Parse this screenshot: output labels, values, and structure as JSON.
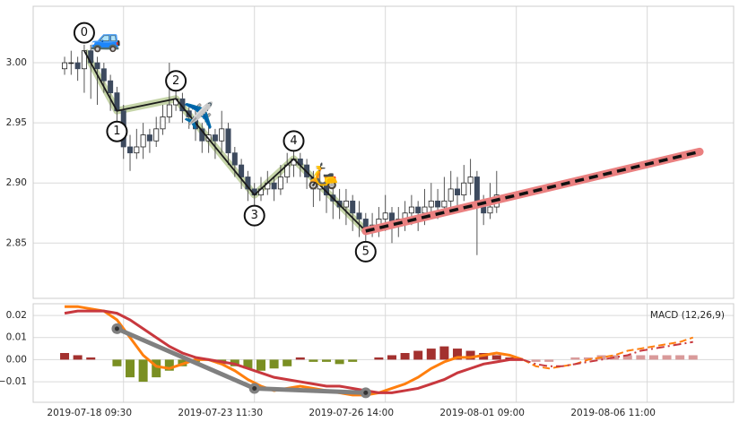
{
  "chart_data": [
    {
      "type": "candlestick",
      "x": [
        1,
        2,
        3,
        4,
        5,
        6,
        7,
        8,
        9,
        10,
        11,
        12,
        13,
        14,
        15,
        16,
        17,
        18,
        19,
        20,
        21,
        22,
        23,
        24,
        25,
        26,
        27,
        28,
        29,
        30,
        31,
        32,
        33,
        34,
        35,
        36,
        37,
        38,
        39,
        40,
        41,
        42,
        43,
        44,
        45,
        46,
        47,
        48,
        49,
        50,
        51,
        52,
        53,
        54,
        55,
        56,
        57,
        58,
        59,
        60,
        61,
        62,
        63,
        64,
        65,
        66,
        67
      ],
      "open": [
        2.995,
        3.0,
        3.0,
        2.995,
        3.01,
        3.0,
        2.995,
        2.985,
        2.975,
        2.96,
        2.93,
        2.925,
        2.93,
        2.94,
        2.935,
        2.945,
        2.955,
        2.965,
        2.97,
        2.96,
        2.955,
        2.945,
        2.935,
        2.94,
        2.935,
        2.945,
        2.925,
        2.915,
        2.905,
        2.895,
        2.89,
        2.895,
        2.9,
        2.895,
        2.905,
        2.915,
        2.92,
        2.915,
        2.905,
        2.895,
        2.9,
        2.89,
        2.885,
        2.88,
        2.885,
        2.875,
        2.87,
        2.86,
        2.865,
        2.87,
        2.875,
        2.865,
        2.87,
        2.875,
        2.88,
        2.875,
        2.88,
        2.885,
        2.88,
        2.885,
        2.895,
        2.89,
        2.9,
        2.905,
        2.88,
        2.875,
        2.88
      ],
      "high": [
        3.005,
        3.01,
        3.005,
        3.015,
        3.015,
        3.005,
        3.0,
        2.99,
        2.98,
        2.965,
        2.94,
        2.945,
        2.95,
        2.945,
        2.955,
        2.965,
        3.0,
        2.99,
        2.975,
        2.965,
        2.96,
        2.95,
        2.95,
        2.945,
        2.96,
        2.95,
        2.93,
        2.92,
        2.91,
        2.9,
        2.905,
        2.91,
        2.905,
        2.915,
        2.925,
        2.93,
        2.925,
        2.92,
        2.91,
        2.91,
        2.905,
        2.9,
        2.895,
        2.895,
        2.89,
        2.885,
        2.875,
        2.875,
        2.88,
        2.89,
        2.88,
        2.88,
        2.885,
        2.89,
        2.885,
        2.895,
        2.9,
        2.895,
        2.905,
        2.91,
        2.905,
        2.915,
        2.92,
        2.91,
        2.89,
        2.9,
        2.91
      ],
      "low": [
        2.99,
        2.99,
        2.985,
        2.975,
        2.97,
        2.965,
        2.975,
        2.96,
        2.95,
        2.92,
        2.91,
        2.92,
        2.92,
        2.925,
        2.93,
        2.94,
        2.95,
        2.96,
        2.95,
        2.945,
        2.935,
        2.925,
        2.925,
        2.92,
        2.925,
        2.915,
        2.905,
        2.895,
        2.885,
        2.88,
        2.885,
        2.89,
        2.885,
        2.89,
        2.9,
        2.905,
        2.905,
        2.895,
        2.88,
        2.885,
        2.875,
        2.87,
        2.87,
        2.865,
        2.86,
        2.855,
        2.85,
        2.855,
        2.855,
        2.86,
        2.85,
        2.855,
        2.86,
        2.865,
        2.86,
        2.865,
        2.87,
        2.87,
        2.875,
        2.88,
        2.88,
        2.885,
        2.89,
        2.84,
        2.865,
        2.87,
        2.875
      ],
      "close": [
        3.0,
        3.0,
        2.995,
        3.01,
        3.0,
        2.995,
        2.985,
        2.975,
        2.96,
        2.93,
        2.925,
        2.93,
        2.94,
        2.935,
        2.945,
        2.955,
        2.965,
        2.97,
        2.96,
        2.955,
        2.945,
        2.935,
        2.94,
        2.935,
        2.945,
        2.925,
        2.915,
        2.905,
        2.895,
        2.89,
        2.895,
        2.9,
        2.895,
        2.905,
        2.915,
        2.92,
        2.915,
        2.905,
        2.895,
        2.9,
        2.89,
        2.885,
        2.88,
        2.885,
        2.875,
        2.87,
        2.86,
        2.865,
        2.87,
        2.875,
        2.865,
        2.87,
        2.875,
        2.88,
        2.875,
        2.88,
        2.885,
        2.88,
        2.885,
        2.895,
        2.89,
        2.9,
        2.905,
        2.88,
        2.875,
        2.88,
        2.89
      ],
      "up_color": "#ffffff",
      "down_color": "#3d4a5e",
      "zigzag": {
        "x": [
          4,
          9,
          18,
          30,
          36,
          47
        ],
        "y": [
          3.01,
          2.96,
          2.97,
          2.89,
          2.92,
          2.86
        ],
        "labels": [
          "0",
          "1",
          "2",
          "3",
          "4",
          "5"
        ],
        "color": "#1a1a1a",
        "halo": "#c5d4a8"
      },
      "forecast": {
        "x": [
          47,
          98
        ],
        "y": [
          2.86,
          2.926
        ],
        "color": "#111111",
        "halo": "#ea8080"
      },
      "markers": [
        {
          "label": "🚙",
          "x": 7.3,
          "y": 3.019
        },
        {
          "label": "✈️",
          "x": 21.5,
          "y": 2.955
        },
        {
          "label": "🛵",
          "x": 40.5,
          "y": 2.905
        }
      ],
      "xlim": [
        -3.8,
        103.2
      ],
      "xticks": [
        {
          "value": 10,
          "label": "2019-07-18 09:30"
        },
        {
          "value": 30,
          "label": "2019-07-23 11:30"
        },
        {
          "value": 50,
          "label": "2019-07-26 14:00"
        },
        {
          "value": 70,
          "label": "2019-08-01 09:00"
        },
        {
          "value": 90,
          "label": "2019-08-06 11:00"
        }
      ],
      "ylim": [
        2.804,
        3.047
      ],
      "yticks": [
        {
          "value": 2.85,
          "label": "2.85"
        },
        {
          "value": 2.9,
          "label": "2.90"
        },
        {
          "value": 2.95,
          "label": "2.95"
        },
        {
          "value": 3.0,
          "label": "3.00"
        }
      ],
      "grid": true
    },
    {
      "type": "macd",
      "label": "MACD (12,26,9)",
      "legend": "upper right",
      "xlim": [
        -3.8,
        103.2
      ],
      "ylim": [
        -0.0193,
        0.0253
      ],
      "yticks": [
        {
          "value": -0.01,
          "label": "−0.01"
        },
        {
          "value": 0.0,
          "label": "0.00"
        },
        {
          "value": 0.01,
          "label": "0.01"
        },
        {
          "value": 0.02,
          "label": "0.02"
        }
      ],
      "xticks": [
        10,
        30,
        50,
        70,
        90
      ],
      "grid": true,
      "series": [
        {
          "color": "#ff7f0e",
          "style": "solid",
          "x": [
            1,
            3,
            5,
            7,
            9,
            11,
            13,
            15,
            17,
            19,
            21,
            23,
            25,
            27,
            29,
            31,
            33,
            35,
            37,
            39,
            41,
            43,
            45,
            47,
            49,
            51,
            53,
            55,
            57,
            59,
            61,
            63,
            65,
            67,
            69,
            71
          ],
          "values": [
            0.024,
            0.024,
            0.023,
            0.022,
            0.018,
            0.01,
            0.002,
            -0.003,
            -0.004,
            -0.002,
            0.0,
            0.0,
            -0.002,
            -0.005,
            -0.009,
            -0.012,
            -0.014,
            -0.013,
            -0.012,
            -0.013,
            -0.014,
            -0.015,
            -0.016,
            -0.016,
            -0.015,
            -0.013,
            -0.011,
            -0.008,
            -0.004,
            -0.001,
            0.001,
            0.001,
            0.002,
            0.003,
            0.002,
            0.0
          ]
        },
        {
          "color": "#c8383e",
          "style": "solid",
          "x": [
            1,
            3,
            5,
            7,
            9,
            11,
            13,
            15,
            17,
            19,
            21,
            23,
            25,
            27,
            29,
            31,
            33,
            35,
            37,
            39,
            41,
            43,
            45,
            47,
            49,
            51,
            53,
            55,
            57,
            59,
            61,
            63,
            65,
            67,
            69,
            71
          ],
          "values": [
            0.021,
            0.022,
            0.022,
            0.022,
            0.021,
            0.018,
            0.014,
            0.01,
            0.006,
            0.003,
            0.001,
            0.0,
            -0.001,
            -0.002,
            -0.004,
            -0.006,
            -0.008,
            -0.009,
            -0.01,
            -0.011,
            -0.012,
            -0.012,
            -0.013,
            -0.014,
            -0.015,
            -0.015,
            -0.014,
            -0.013,
            -0.011,
            -0.009,
            -0.006,
            -0.004,
            -0.002,
            -0.001,
            0.0,
            0.0
          ]
        },
        {
          "color": "#ff7f0e",
          "style": "dashed",
          "x": [
            71,
            73,
            75,
            77,
            79,
            81,
            83,
            85,
            87,
            89,
            91,
            93,
            95,
            97
          ],
          "values": [
            0.0,
            -0.003,
            -0.004,
            -0.003,
            -0.002,
            0.0,
            0.001,
            0.002,
            0.004,
            0.005,
            0.006,
            0.007,
            0.008,
            0.01
          ]
        },
        {
          "color": "#c8383e",
          "style": "dashdot",
          "x": [
            71,
            73,
            75,
            77,
            79,
            81,
            83,
            85,
            87,
            89,
            91,
            93,
            95,
            97
          ],
          "values": [
            0.0,
            -0.002,
            -0.003,
            -0.003,
            -0.002,
            -0.001,
            0.0,
            0.001,
            0.002,
            0.004,
            0.005,
            0.006,
            0.007,
            0.008
          ]
        }
      ],
      "histogram": {
        "pos_color": "#a3312f",
        "neg_color": "#7a8f22",
        "x": [
          1,
          3,
          5,
          7,
          9,
          11,
          13,
          15,
          17,
          19,
          21,
          23,
          25,
          27,
          29,
          31,
          33,
          35,
          37,
          39,
          41,
          43,
          45,
          47,
          49,
          51,
          53,
          55,
          57,
          59,
          61,
          63,
          65,
          67,
          69,
          71
        ],
        "values": [
          0.003,
          0.002,
          0.001,
          0.0,
          -0.003,
          -0.008,
          -0.01,
          -0.008,
          -0.005,
          -0.003,
          -0.001,
          0.0,
          -0.002,
          -0.003,
          -0.004,
          -0.005,
          -0.004,
          -0.003,
          0.001,
          -0.001,
          -0.001,
          -0.002,
          -0.001,
          0.0,
          0.001,
          0.002,
          0.003,
          0.004,
          0.005,
          0.006,
          0.005,
          0.004,
          0.003,
          0.002,
          0.001,
          0.0
        ]
      },
      "forecast_histogram": {
        "color": "#d99a9a",
        "x": [
          71,
          73,
          75,
          77,
          79,
          81,
          83,
          85,
          87,
          89,
          91,
          93,
          95,
          97
        ],
        "values": [
          0.0,
          -0.001,
          -0.001,
          0.0,
          0.001,
          0.001,
          0.002,
          0.002,
          0.002,
          0.002,
          0.002,
          0.002,
          0.002,
          0.002
        ]
      },
      "zigzag": {
        "x": [
          9,
          30,
          47
        ],
        "y": [
          0.014,
          -0.013,
          -0.015
        ],
        "color": "#808080"
      }
    }
  ]
}
